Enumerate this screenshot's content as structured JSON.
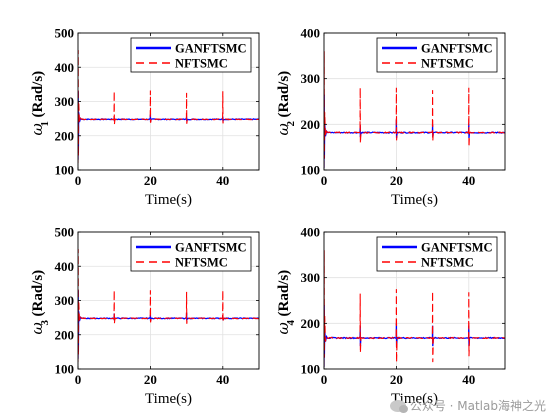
{
  "watermark": "公众号 · Matlab海神之光",
  "chart_data": [
    {
      "type": "line",
      "xlabel": "Time(s)",
      "ylabel_symbol": "ω",
      "ylabel_sub": "1",
      "ylabel_unit": "(Rad/s)",
      "xlim": [
        0,
        50
      ],
      "ylim": [
        100,
        500
      ],
      "xticks": [
        0,
        20,
        40
      ],
      "yticks": [
        100,
        200,
        300,
        400,
        500
      ],
      "grid": true,
      "legend_position": "top-right",
      "steady_value": 248,
      "series": [
        {
          "name": "GANFTSMC",
          "color": "#0000ff",
          "style": "solid",
          "initial_peak": 330,
          "initial_dip": 130,
          "spikes": [
            {
              "t": 10,
              "max": 252,
              "min": 244
            },
            {
              "t": 20,
              "max": 262,
              "min": 240
            },
            {
              "t": 30,
              "max": 255,
              "min": 243
            },
            {
              "t": 40,
              "max": 256,
              "min": 242
            }
          ]
        },
        {
          "name": "NFTSMC",
          "color": "#ff0000",
          "style": "dashed",
          "initial_peak": 450,
          "initial_dip": 120,
          "spikes": [
            {
              "t": 10,
              "max": 330,
              "min": 232
            },
            {
              "t": 20,
              "max": 332,
              "min": 238
            },
            {
              "t": 30,
              "max": 325,
              "min": 235
            },
            {
              "t": 40,
              "max": 330,
              "min": 236
            }
          ]
        }
      ]
    },
    {
      "type": "line",
      "xlabel": "Time(s)",
      "ylabel_symbol": "ω",
      "ylabel_sub": "2",
      "ylabel_unit": "(Rad/s)",
      "xlim": [
        0,
        50
      ],
      "ylim": [
        100,
        400
      ],
      "xticks": [
        0,
        20,
        40
      ],
      "yticks": [
        100,
        200,
        300,
        400
      ],
      "grid": true,
      "legend_position": "top-right",
      "steady_value": 182,
      "series": [
        {
          "name": "GANFTSMC",
          "color": "#0000ff",
          "style": "solid",
          "initial_peak": 265,
          "initial_dip": 105,
          "spikes": [
            {
              "t": 10,
              "max": 198,
              "min": 172
            },
            {
              "t": 20,
              "max": 210,
              "min": 170
            },
            {
              "t": 30,
              "max": 200,
              "min": 172
            },
            {
              "t": 40,
              "max": 202,
              "min": 170
            }
          ]
        },
        {
          "name": "NFTSMC",
          "color": "#ff0000",
          "style": "dashed",
          "initial_peak": 360,
          "initial_dip": 105,
          "spikes": [
            {
              "t": 10,
              "max": 280,
              "min": 158
            },
            {
              "t": 20,
              "max": 280,
              "min": 165
            },
            {
              "t": 30,
              "max": 275,
              "min": 163
            },
            {
              "t": 40,
              "max": 280,
              "min": 150
            }
          ]
        }
      ]
    },
    {
      "type": "line",
      "xlabel": "Time(s)",
      "ylabel_symbol": "ω",
      "ylabel_sub": "3",
      "ylabel_unit": "(Rad/s)",
      "xlim": [
        0,
        50
      ],
      "ylim": [
        100,
        500
      ],
      "xticks": [
        0,
        20,
        40
      ],
      "yticks": [
        100,
        200,
        300,
        400,
        500
      ],
      "grid": true,
      "legend_position": "top-right",
      "steady_value": 248,
      "series": [
        {
          "name": "GANFTSMC",
          "color": "#0000ff",
          "style": "solid",
          "initial_peak": 330,
          "initial_dip": 130,
          "spikes": [
            {
              "t": 10,
              "max": 262,
              "min": 242
            },
            {
              "t": 20,
              "max": 258,
              "min": 240
            },
            {
              "t": 30,
              "max": 265,
              "min": 242
            },
            {
              "t": 40,
              "max": 258,
              "min": 242
            }
          ]
        },
        {
          "name": "NFTSMC",
          "color": "#ff0000",
          "style": "dashed",
          "initial_peak": 450,
          "initial_dip": 120,
          "spikes": [
            {
              "t": 10,
              "max": 330,
              "min": 232
            },
            {
              "t": 20,
              "max": 330,
              "min": 236
            },
            {
              "t": 30,
              "max": 325,
              "min": 232
            },
            {
              "t": 40,
              "max": 330,
              "min": 236
            }
          ]
        }
      ]
    },
    {
      "type": "line",
      "xlabel": "Time(s)",
      "ylabel_symbol": "ω",
      "ylabel_sub": "4",
      "ylabel_unit": "(Rad/s)",
      "xlim": [
        0,
        50
      ],
      "ylim": [
        100,
        400
      ],
      "xticks": [
        0,
        20,
        40
      ],
      "yticks": [
        100,
        200,
        300,
        400
      ],
      "grid": true,
      "legend_position": "top-right",
      "steady_value": 168,
      "series": [
        {
          "name": "GANFTSMC",
          "color": "#0000ff",
          "style": "solid",
          "initial_peak": 240,
          "initial_dip": 105,
          "spikes": [
            {
              "t": 10,
              "max": 195,
              "min": 150
            },
            {
              "t": 20,
              "max": 200,
              "min": 148
            },
            {
              "t": 30,
              "max": 195,
              "min": 150
            },
            {
              "t": 40,
              "max": 195,
              "min": 150
            }
          ]
        },
        {
          "name": "NFTSMC",
          "color": "#ff0000",
          "style": "dashed",
          "initial_peak": 360,
          "initial_dip": 105,
          "spikes": [
            {
              "t": 10,
              "max": 265,
              "min": 135
            },
            {
              "t": 20,
              "max": 275,
              "min": 115
            },
            {
              "t": 30,
              "max": 270,
              "min": 115
            },
            {
              "t": 40,
              "max": 268,
              "min": 128
            }
          ]
        }
      ]
    }
  ]
}
